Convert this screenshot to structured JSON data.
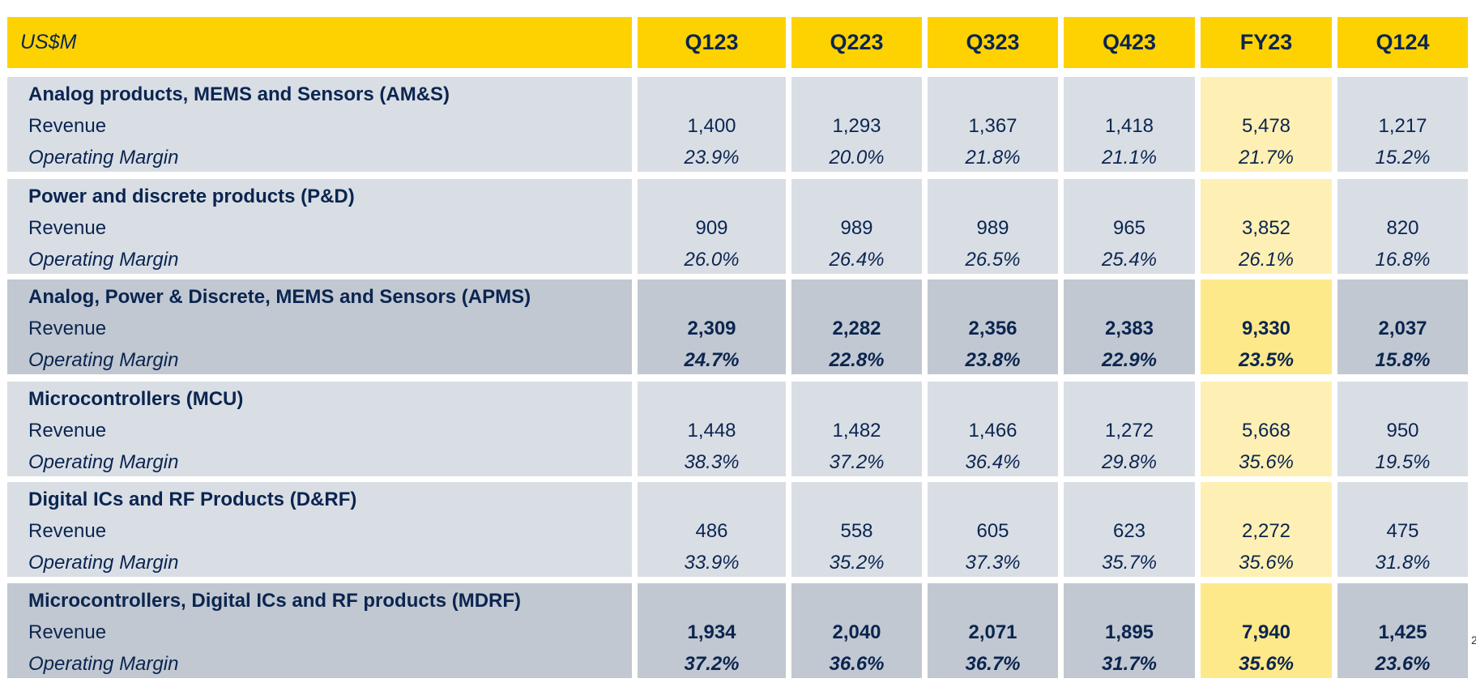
{
  "header": {
    "unit": "US$M",
    "columns": [
      "Q123",
      "Q223",
      "Q323",
      "Q423",
      "FY23",
      "Q124"
    ]
  },
  "row_labels": {
    "revenue": "Revenue",
    "margin": "Operating Margin"
  },
  "groups": [
    {
      "title": "Analog products, MEMS and Sensors (AM&S)",
      "subtotal": false,
      "revenue": [
        "1,400",
        "1,293",
        "1,367",
        "1,418",
        "5,478",
        "1,217"
      ],
      "margin": [
        "23.9%",
        "20.0%",
        "21.8%",
        "21.1%",
        "21.7%",
        "15.2%"
      ]
    },
    {
      "title": "Power and discrete products (P&D)",
      "subtotal": false,
      "revenue": [
        "909",
        "989",
        "989",
        "965",
        "3,852",
        "820"
      ],
      "margin": [
        "26.0%",
        "26.4%",
        "26.5%",
        "25.4%",
        "26.1%",
        "16.8%"
      ]
    },
    {
      "title": "Analog, Power & Discrete, MEMS and Sensors (APMS)",
      "subtotal": true,
      "revenue": [
        "2,309",
        "2,282",
        "2,356",
        "2,383",
        "9,330",
        "2,037"
      ],
      "margin": [
        "24.7%",
        "22.8%",
        "23.8%",
        "22.9%",
        "23.5%",
        "15.8%"
      ]
    },
    {
      "title": "Microcontrollers (MCU)",
      "subtotal": false,
      "revenue": [
        "1,448",
        "1,482",
        "1,466",
        "1,272",
        "5,668",
        "950"
      ],
      "margin": [
        "38.3%",
        "37.2%",
        "36.4%",
        "29.8%",
        "35.6%",
        "19.5%"
      ]
    },
    {
      "title": "Digital ICs and RF Products (D&RF)",
      "subtotal": false,
      "revenue": [
        "486",
        "558",
        "605",
        "623",
        "2,272",
        "475"
      ],
      "margin": [
        "33.9%",
        "35.2%",
        "37.3%",
        "35.7%",
        "35.6%",
        "31.8%"
      ]
    },
    {
      "title": "Microcontrollers, Digital ICs and RF products  (MDRF)",
      "subtotal": true,
      "revenue": [
        "1,934",
        "2,040",
        "2,071",
        "1,895",
        "7,940",
        "1,425"
      ],
      "margin": [
        "37.2%",
        "36.6%",
        "36.7%",
        "31.7%",
        "35.6%",
        "23.6%"
      ]
    }
  ],
  "colors": {
    "header": "#fed200",
    "row": "#d9dee5",
    "subtotal_row": "#c1c8d1",
    "fy_col": "#fef0b4",
    "fy_subtotal": "#fee98a",
    "text": "#0b2550"
  },
  "page_number": "2"
}
